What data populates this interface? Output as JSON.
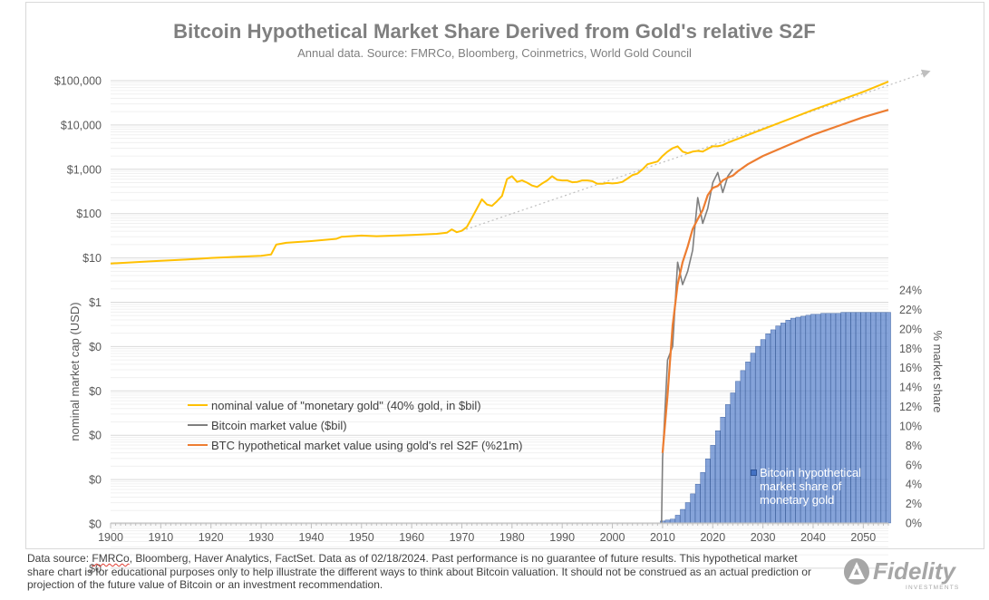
{
  "chart_data": {
    "type": "line",
    "title": "Bitcoin Hypothetical Market Share Derived from Gold's relative S2F",
    "subtitle": "Annual data.  Source: FMRCo, Bloomberg, Coinmetrics, World Gold Council",
    "x_axis": {
      "ticks": [
        "1900",
        "1910",
        "1920",
        "1930",
        "1940",
        "1950",
        "1960",
        "1970",
        "1980",
        "1990",
        "2000",
        "2010",
        "2020",
        "2030",
        "2040",
        "2050"
      ],
      "range": [
        1900,
        2055
      ]
    },
    "y_left": {
      "label": "nominal market cap (USD)",
      "scale": "log",
      "ticks": [
        "$100,000",
        "$10,000",
        "$1,000",
        "$100",
        "$10",
        "$1",
        "$0",
        "$0",
        "$0",
        "$0",
        "$0",
        "$0"
      ]
    },
    "y_right": {
      "label": "% market share",
      "ticks": [
        "24%",
        "22%",
        "20%",
        "18%",
        "16%",
        "14%",
        "12%",
        "10%",
        "8%",
        "6%",
        "4%",
        "2%",
        "0%"
      ],
      "range": [
        0,
        24
      ]
    },
    "legend_placement": "center-left",
    "gridlines": true,
    "series": [
      {
        "name": "nominal value of \"monetary gold\" (40% gold, in $bil)",
        "color": "#ffc000",
        "axis": "left",
        "x": [
          1900,
          1905,
          1910,
          1915,
          1920,
          1925,
          1930,
          1932,
          1933,
          1935,
          1940,
          1945,
          1946,
          1950,
          1953,
          1960,
          1965,
          1967,
          1968,
          1969,
          1970,
          1971,
          1972,
          1973,
          1974,
          1975,
          1976,
          1977,
          1978,
          1979,
          1980,
          1981,
          1982,
          1983,
          1984,
          1985,
          1986,
          1987,
          1988,
          1989,
          1990,
          1991,
          1992,
          1993,
          1994,
          1995,
          1996,
          1997,
          1998,
          1999,
          2000,
          2001,
          2002,
          2003,
          2004,
          2005,
          2006,
          2007,
          2008,
          2009,
          2010,
          2011,
          2012,
          2013,
          2014,
          2015,
          2016,
          2017,
          2018,
          2019,
          2020,
          2021,
          2022,
          2023,
          2024,
          2030,
          2040,
          2050,
          2055
        ],
        "values": [
          7.5,
          8,
          8.6,
          9.2,
          10,
          10.6,
          11.2,
          12,
          20,
          22,
          24,
          27,
          30,
          32,
          31,
          33,
          35,
          37,
          44,
          38,
          41,
          50,
          80,
          130,
          210,
          160,
          150,
          190,
          250,
          600,
          700,
          520,
          560,
          500,
          430,
          400,
          480,
          560,
          700,
          580,
          560,
          560,
          510,
          520,
          560,
          560,
          540,
          470,
          470,
          490,
          480,
          490,
          520,
          620,
          740,
          800,
          1000,
          1300,
          1400,
          1500,
          2000,
          2500,
          3000,
          3300,
          2500,
          2300,
          2500,
          2600,
          2500,
          2900,
          3300,
          3300,
          3500,
          4000,
          4400,
          8000,
          22000,
          56000,
          95000
        ]
      },
      {
        "name": "Bitcoin market value ($bil)",
        "color": "#7f7f7f",
        "axis": "left",
        "x": [
          2009.8,
          2010,
          2011,
          2012,
          2013,
          2014,
          2015,
          2016,
          2017,
          2018,
          2019,
          2020,
          2021,
          2022,
          2023,
          2024
        ],
        "values": [
          1e-06,
          0.0003,
          0.05,
          0.1,
          8,
          2.5,
          5,
          15,
          230,
          60,
          130,
          500,
          850,
          300,
          700,
          1000
        ]
      },
      {
        "name": "BTC hypothetical market value using gold's rel S2F (%21m)",
        "color": "#ed7d31",
        "axis": "left",
        "x": [
          2010,
          2011,
          2012,
          2013,
          2014,
          2015,
          2016,
          2017,
          2018,
          2019,
          2020,
          2021,
          2022,
          2023,
          2024,
          2025,
          2027,
          2030,
          2035,
          2040,
          2045,
          2050,
          2055
        ],
        "values": [
          0.0004,
          0.008,
          0.3,
          2.5,
          8,
          18,
          45,
          75,
          120,
          260,
          380,
          420,
          560,
          650,
          720,
          900,
          1300,
          2000,
          3500,
          6000,
          9500,
          15000,
          22000
        ]
      }
    ],
    "trend_line": {
      "from": [
        1970,
        41
      ],
      "to": [
        2063,
        160000
      ],
      "style": "dotted-arrow",
      "color": "#bfbfbf"
    },
    "bars": {
      "name": "Bitcoin hypothetical market share of monetary gold",
      "color": "#4472c4",
      "axis": "right",
      "x": [
        2010,
        2011,
        2012,
        2013,
        2014,
        2015,
        2016,
        2017,
        2018,
        2019,
        2020,
        2021,
        2022,
        2023,
        2024,
        2025,
        2026,
        2027,
        2028,
        2029,
        2030,
        2031,
        2032,
        2033,
        2034,
        2035,
        2036,
        2037,
        2038,
        2039,
        2040,
        2041,
        2042,
        2043,
        2044,
        2045,
        2046,
        2047,
        2048,
        2049,
        2050,
        2051,
        2052,
        2053,
        2054,
        2055
      ],
      "values": [
        0.2,
        0.3,
        0.4,
        0.8,
        1.4,
        2.1,
        3.0,
        4.0,
        5.2,
        6.6,
        8.0,
        9.5,
        10.9,
        12.2,
        13.4,
        14.6,
        15.7,
        16.6,
        17.5,
        18.2,
        18.9,
        19.5,
        19.9,
        20.3,
        20.6,
        20.9,
        21.1,
        21.2,
        21.3,
        21.4,
        21.5,
        21.5,
        21.6,
        21.6,
        21.6,
        21.6,
        21.7,
        21.7,
        21.7,
        21.7,
        21.7,
        21.7,
        21.7,
        21.7,
        21.7,
        21.7
      ]
    }
  },
  "footnote": {
    "prefix": "Data source: ",
    "flagged_word": "FMRCo",
    "rest": ", Bloomberg, Haver Analytics, FactSet. Data as of 02/18/2024. Past performance is no guarantee of future results. This hypothetical market share chart is for educational purposes only to help illustrate the different ways to think about Bitcoin valuation.  It should not be construed as an actual prediction or projection of the future value of Bitcoin or an investment recommendation."
  },
  "logo": {
    "name": "Fidelity",
    "tagline": "INVESTMENTS",
    "color": "#a6a6a6"
  }
}
